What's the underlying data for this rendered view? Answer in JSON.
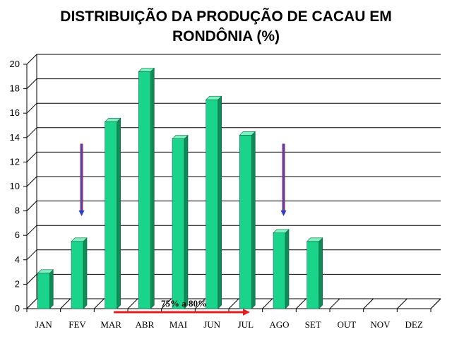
{
  "chart_data": {
    "type": "bar",
    "title_line1": "DISTRIBUIÇÃO DA PRODUÇÃO DE CACAU EM",
    "title_line2": "RONDÔNIA (%)",
    "categories": [
      "JAN",
      "FEV",
      "MAR",
      "ABR",
      "MAI",
      "JUN",
      "JUL",
      "AGO",
      "SET",
      "OUT",
      "NOV",
      "DEZ"
    ],
    "values": [
      2.9,
      5.5,
      15.3,
      19.4,
      13.9,
      17.1,
      14.2,
      6.2,
      5.5,
      null,
      null,
      null
    ],
    "ylim": [
      0,
      20
    ],
    "yticks": [
      0,
      2,
      4,
      6,
      8,
      10,
      12,
      14,
      16,
      18,
      20
    ],
    "grid": true,
    "bar_color": "#1ad48c",
    "annotation": {
      "text": "75% a 80%",
      "from": "MAR",
      "to": "JUL",
      "color": "#e02020"
    },
    "down_arrows": [
      "FEV",
      "AGO"
    ],
    "down_arrow_from": 13.5,
    "down_arrow_to": 7.8
  }
}
